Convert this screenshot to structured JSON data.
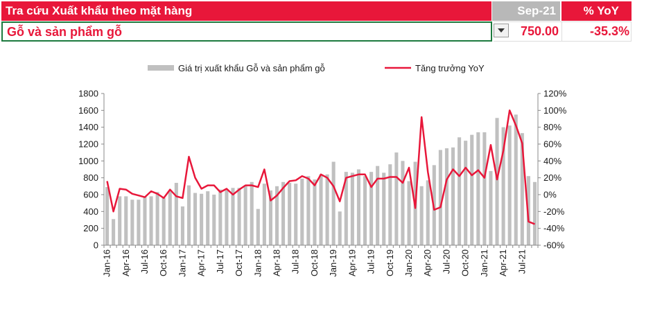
{
  "header": {
    "title": "Tra cứu Xuất khẩu theo mặt hàng",
    "month": "Sep-21",
    "yoy_label": "% YoY"
  },
  "selection": {
    "item": "Gỗ và sản phẩm gỗ",
    "value": "750.00",
    "yoy": "-35.3%"
  },
  "colors": {
    "accent": "#e8173a",
    "bar": "#c0c0c0",
    "select_border": "#1c7a3e",
    "month_bg": "#b8b8b8"
  },
  "chart_data": {
    "type": "bar",
    "legend": [
      "Giá trị xuất khẩu Gỗ và sản phẩm gỗ",
      "Tăng trưởng YoY"
    ],
    "legend_position": "top",
    "categories": [
      "Jan-16",
      "Feb-16",
      "Mar-16",
      "Apr-16",
      "May-16",
      "Jun-16",
      "Jul-16",
      "Aug-16",
      "Sep-16",
      "Oct-16",
      "Nov-16",
      "Dec-16",
      "Jan-17",
      "Feb-17",
      "Mar-17",
      "Apr-17",
      "May-17",
      "Jun-17",
      "Jul-17",
      "Aug-17",
      "Sep-17",
      "Oct-17",
      "Nov-17",
      "Dec-17",
      "Jan-18",
      "Feb-18",
      "Mar-18",
      "Apr-18",
      "May-18",
      "Jun-18",
      "Jul-18",
      "Aug-18",
      "Sep-18",
      "Oct-18",
      "Nov-18",
      "Dec-18",
      "Jan-19",
      "Feb-19",
      "Mar-19",
      "Apr-19",
      "May-19",
      "Jun-19",
      "Jul-19",
      "Aug-19",
      "Sep-19",
      "Oct-19",
      "Nov-19",
      "Dec-19",
      "Jan-20",
      "Feb-20",
      "Mar-20",
      "Apr-20",
      "May-20",
      "Jun-20",
      "Jul-20",
      "Aug-20",
      "Sep-20",
      "Oct-20",
      "Nov-20",
      "Dec-20",
      "Jan-21",
      "Feb-21",
      "Mar-21",
      "Apr-21",
      "May-21",
      "Jun-21",
      "Jul-21",
      "Aug-21",
      "Sep-21"
    ],
    "x_tick_labels": [
      "Jan-16",
      "Apr-16",
      "Jul-16",
      "Oct-16",
      "Jan-17",
      "Apr-17",
      "Jul-17",
      "Oct-17",
      "Jan-18",
      "Apr-18",
      "Jul-18",
      "Oct-18",
      "Jan-19",
      "Apr-19",
      "Jul-19",
      "Oct-19",
      "Jan-20",
      "Apr-20",
      "Jul-20",
      "Oct-20",
      "Jan-21",
      "Apr-21",
      "Jul-21"
    ],
    "series": [
      {
        "name": "Giá trị xuất khẩu Gỗ và sản phẩm gỗ",
        "type": "bar",
        "axis": "left",
        "values": [
          690,
          310,
          580,
          580,
          540,
          540,
          580,
          580,
          630,
          560,
          640,
          740,
          460,
          710,
          620,
          610,
          640,
          600,
          660,
          650,
          680,
          680,
          700,
          750,
          430,
          730,
          650,
          700,
          750,
          740,
          730,
          790,
          820,
          780,
          840,
          840,
          990,
          400,
          870,
          860,
          900,
          820,
          870,
          940,
          860,
          960,
          1100,
          1000,
          760,
          990,
          700,
          770,
          950,
          1130,
          1150,
          1160,
          1280,
          1240,
          1310,
          1340,
          1340,
          880,
          1510,
          1400,
          1420,
          1550,
          1330,
          820,
          750
        ]
      },
      {
        "name": "Tăng trưởng YoY",
        "type": "line",
        "axis": "right",
        "values": [
          16,
          -20,
          7,
          6,
          1,
          -1,
          -3,
          4,
          1,
          -4,
          6,
          -2,
          -4,
          45,
          20,
          7,
          11,
          11,
          3,
          7,
          0,
          6,
          11,
          11,
          9,
          30,
          -7,
          -1,
          8,
          16,
          17,
          22,
          19,
          11,
          24,
          20,
          10,
          -8,
          20,
          22,
          24,
          24,
          9,
          19,
          19,
          21,
          21,
          14,
          32,
          -16,
          92,
          27,
          -18,
          -15,
          18,
          30,
          22,
          32,
          23,
          29,
          20,
          59,
          18,
          52,
          100,
          82,
          61,
          -32,
          -35
        ]
      }
    ],
    "y_left": {
      "ylim": [
        0,
        1800
      ],
      "ticks": [
        0,
        200,
        400,
        600,
        800,
        1000,
        1200,
        1400,
        1600,
        1800
      ]
    },
    "y_right": {
      "ylim": [
        -60,
        120
      ],
      "ticks": [
        "120%",
        "100%",
        "80%",
        "60%",
        "40%",
        "20%",
        "0%",
        "-20%",
        "-40%",
        "-60%"
      ]
    }
  }
}
